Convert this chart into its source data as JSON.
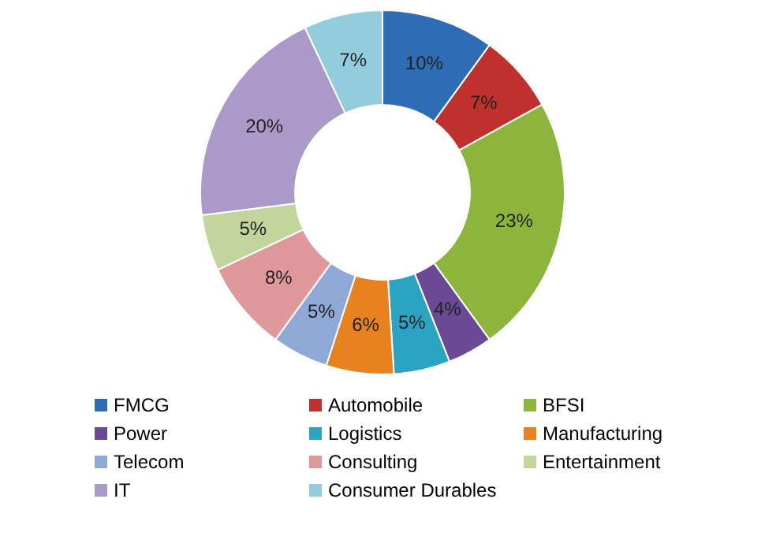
{
  "chart_data": {
    "type": "donut",
    "categories": [
      "FMCG",
      "Automobile",
      "BFSI",
      "Power",
      "Logistics",
      "Manufacturing",
      "Telecom",
      "Consulting",
      "Entertainment",
      "IT",
      "Consumer Durables"
    ],
    "values": [
      10,
      7,
      23,
      4,
      5,
      6,
      5,
      8,
      5,
      20,
      7
    ],
    "colors": [
      "#2e6db4",
      "#c0302c",
      "#8db53c",
      "#6b4a95",
      "#2ba4c4",
      "#e8821e",
      "#8fa9d6",
      "#e0999a",
      "#c2d69b",
      "#ab99c9",
      "#93cddd"
    ],
    "value_labels": [
      "10%",
      "7%",
      "23%",
      "4%",
      "5%",
      "6%",
      "5%",
      "8%",
      "5%",
      "20%",
      "7%"
    ],
    "legend": "bottom"
  }
}
